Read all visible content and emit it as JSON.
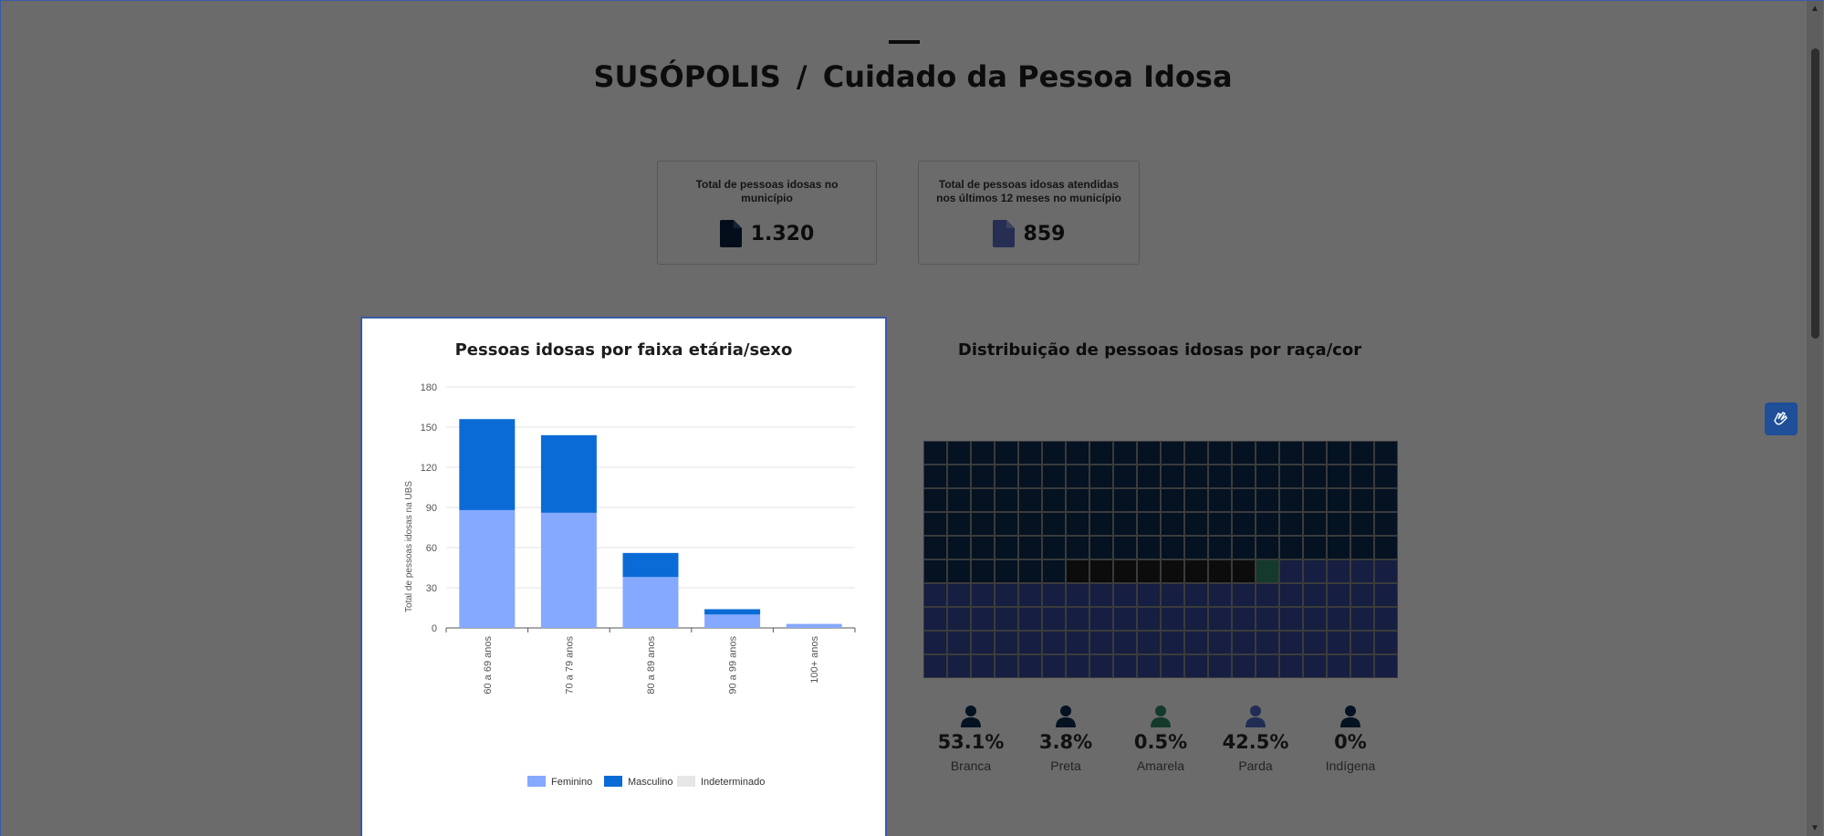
{
  "header": {
    "city": "SUSÓPOLIS",
    "separator": "/",
    "section": "Cuidado da Pessoa Idosa"
  },
  "kpis": [
    {
      "label": "Total de pessoas idosas no município",
      "value": "1.320",
      "icon": "document-icon",
      "color": "#0b2340"
    },
    {
      "label": "Total de pessoas idosas atendidas nos últimos 12 meses no município",
      "value": "859",
      "icon": "document-icon",
      "color": "#5b6fc7"
    }
  ],
  "age_chart": {
    "title": "Pessoas idosas por faixa etária/sexo",
    "legend": [
      "Feminino",
      "Masculino",
      "Indeterminado"
    ]
  },
  "chart_data": {
    "type": "bar",
    "stacked": true,
    "title": "Pessoas idosas por faixa etária/sexo",
    "xlabel": "",
    "ylabel": "Total de pessoas idosas na UBS",
    "ylim": [
      0,
      180
    ],
    "yticks": [
      0,
      30,
      60,
      90,
      120,
      150,
      180
    ],
    "categories": [
      "60 a 69 anos",
      "70 a 79 anos",
      "80 a 89 anos",
      "90 a 99 anos",
      "100+ anos"
    ],
    "series": [
      {
        "name": "Feminino",
        "color": "#85a9ff",
        "values": [
          88,
          86,
          38,
          10,
          3
        ]
      },
      {
        "name": "Masculino",
        "color": "#0b6bd6",
        "values": [
          68,
          58,
          18,
          4,
          0
        ]
      },
      {
        "name": "Indeterminado",
        "color": "#e6e6e6",
        "values": [
          0,
          0,
          0,
          0,
          0
        ]
      }
    ]
  },
  "race_chart": {
    "title": "Distribuição de pessoas idosas por raça/cor",
    "items": [
      {
        "name": "Branca",
        "pct": "53.1%",
        "color": "#0a2d52",
        "cells": 106
      },
      {
        "name": "Preta",
        "pct": "3.8%",
        "color": "#1d1d1d",
        "cells": 8
      },
      {
        "name": "Amarela",
        "pct": "0.5%",
        "color": "#2f8a66",
        "cells": 1
      },
      {
        "name": "Parda",
        "pct": "42.5%",
        "color": "#35489c",
        "cells": 85
      },
      {
        "name": "Indígena",
        "pct": "0%",
        "color": "#0a2d52",
        "cells": 0
      }
    ]
  },
  "accessibility": {
    "label": "Libras",
    "icon": "hands-sign-language-icon"
  }
}
